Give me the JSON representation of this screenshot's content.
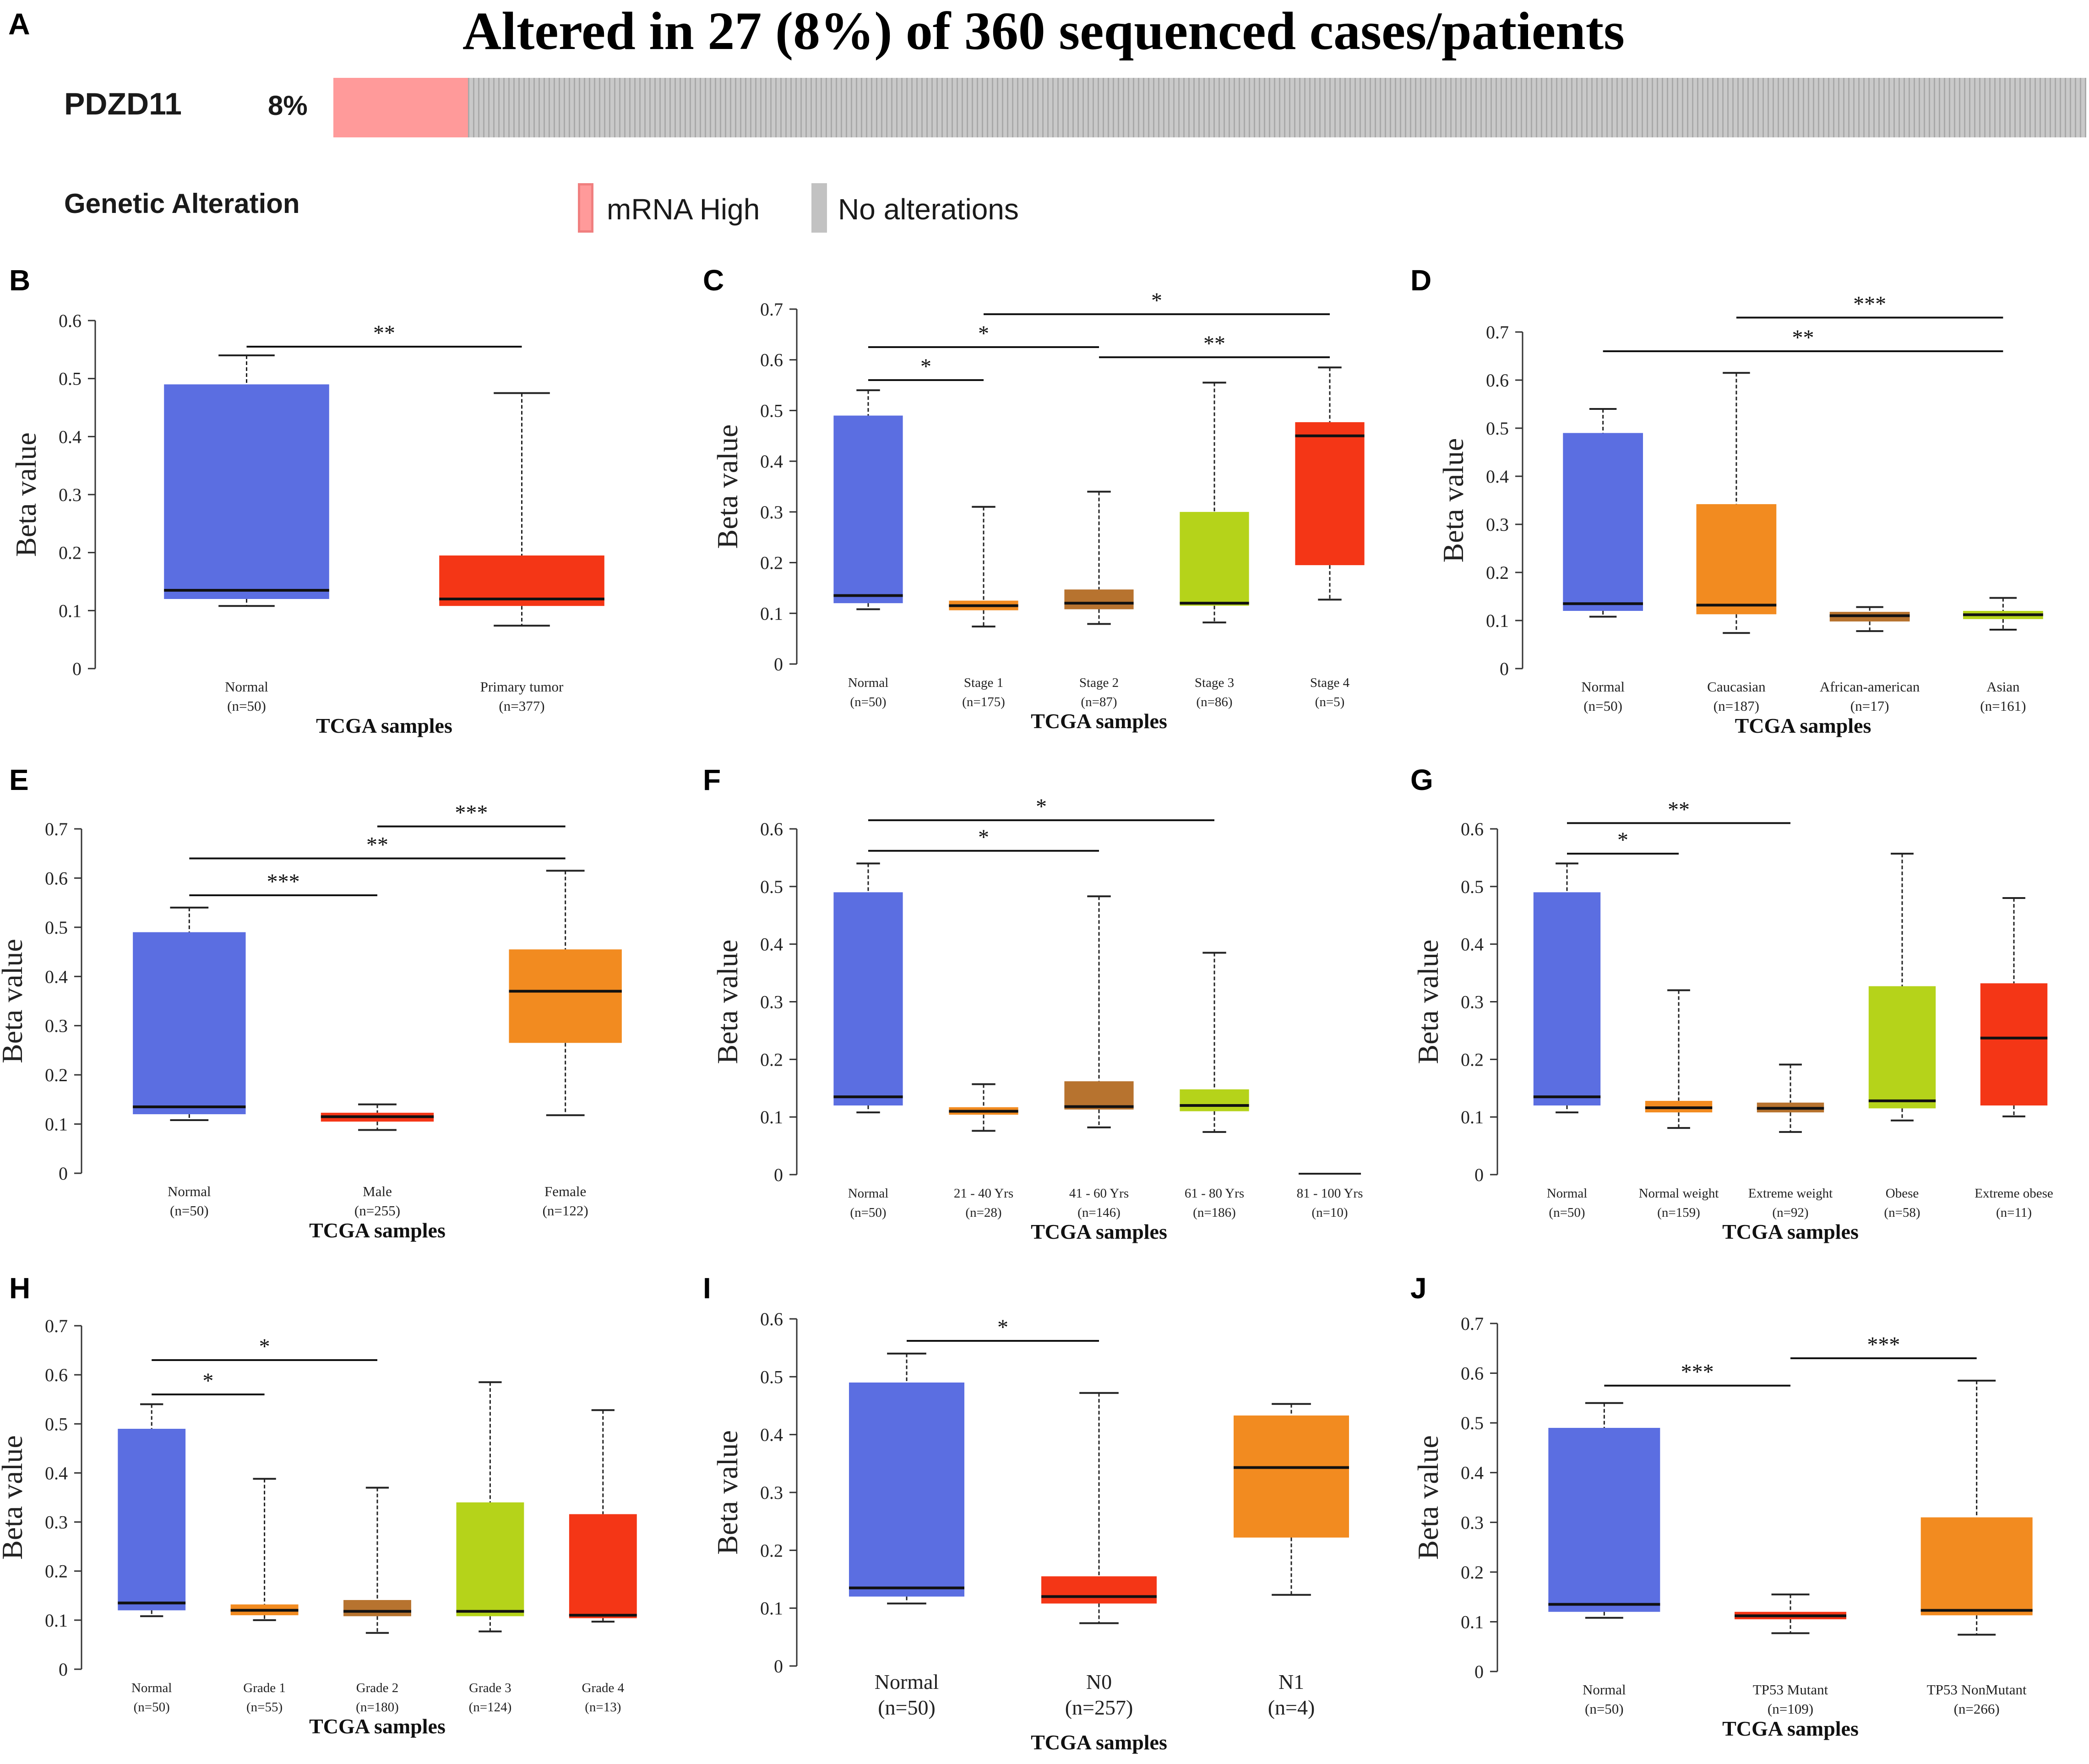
{
  "panel_a": {
    "letter": "A",
    "title": "Altered in 27 (8%) of 360 sequenced cases/patients",
    "gene": "PDZD11",
    "percent_label": "8%",
    "altered_fraction": 0.08,
    "genetic_alteration_label": "Genetic Alteration",
    "legend": [
      {
        "label": "mRNA High",
        "color": "#ff9a9a"
      },
      {
        "label": "No alterations",
        "color": "#c2c2c2"
      }
    ]
  },
  "colors": {
    "normal": "#5b6ee1",
    "red": "#f43616",
    "orange": "#f28b20",
    "brown": "#b7732f",
    "green": "#b5d31a"
  },
  "chart_data": [
    {
      "panel": "B",
      "type": "boxplot",
      "ylabel": "Beta value",
      "xlabel": "TCGA samples",
      "ylim": [
        0,
        0.6
      ],
      "yticks": [
        "0",
        "0.1",
        "0.2",
        "0.3",
        "0.4",
        "0.5",
        "0.6"
      ],
      "categories": [
        {
          "name": "Normal",
          "n": "(n=50)",
          "color": "normal",
          "min": 0.108,
          "q1": 0.12,
          "median": 0.135,
          "q3": 0.49,
          "max": 0.54
        },
        {
          "name": "Primary tumor",
          "n": "(n=377)",
          "color": "red",
          "min": 0.074,
          "q1": 0.108,
          "median": 0.12,
          "q3": 0.195,
          "max": 0.475
        }
      ],
      "sig": [
        {
          "from": 0,
          "to": 1,
          "y": 0.555,
          "label": "**"
        }
      ]
    },
    {
      "panel": "C",
      "type": "boxplot",
      "ylabel": "Beta value",
      "xlabel": "TCGA samples",
      "ylim": [
        0,
        0.7
      ],
      "yticks": [
        "0",
        "0.1",
        "0.2",
        "0.3",
        "0.4",
        "0.5",
        "0.6",
        "0.7"
      ],
      "categories": [
        {
          "name": "Normal",
          "n": "(n=50)",
          "color": "normal",
          "min": 0.108,
          "q1": 0.12,
          "median": 0.135,
          "q3": 0.49,
          "max": 0.54
        },
        {
          "name": "Stage 1",
          "n": "(n=175)",
          "color": "orange",
          "min": 0.074,
          "q1": 0.106,
          "median": 0.115,
          "q3": 0.125,
          "max": 0.31
        },
        {
          "name": "Stage 2",
          "n": "(n=87)",
          "color": "brown",
          "min": 0.079,
          "q1": 0.108,
          "median": 0.12,
          "q3": 0.147,
          "max": 0.34
        },
        {
          "name": "Stage 3",
          "n": "(n=86)",
          "color": "green",
          "min": 0.082,
          "q1": 0.115,
          "median": 0.12,
          "q3": 0.3,
          "max": 0.555
        },
        {
          "name": "Stage 4",
          "n": "(n=5)",
          "color": "red",
          "min": 0.127,
          "q1": 0.195,
          "median": 0.45,
          "q3": 0.477,
          "max": 0.585
        }
      ],
      "sig": [
        {
          "from": 0,
          "to": 1,
          "y": 0.56,
          "label": "*"
        },
        {
          "from": 0,
          "to": 2,
          "y": 0.625,
          "label": "*"
        },
        {
          "from": 2,
          "to": 4,
          "y": 0.605,
          "label": "**"
        },
        {
          "from": 1,
          "to": 4,
          "y": 0.69,
          "label": "*"
        }
      ]
    },
    {
      "panel": "D",
      "type": "boxplot",
      "ylabel": "Beta value",
      "xlabel": "TCGA samples",
      "ylim": [
        0,
        0.7
      ],
      "yticks": [
        "0",
        "0.1",
        "0.2",
        "0.3",
        "0.4",
        "0.5",
        "0.6",
        "0.7"
      ],
      "categories": [
        {
          "name": "Normal",
          "n": "(n=50)",
          "color": "normal",
          "min": 0.108,
          "q1": 0.12,
          "median": 0.135,
          "q3": 0.49,
          "max": 0.54
        },
        {
          "name": "Caucasian",
          "n": "(n=187)",
          "color": "orange",
          "min": 0.074,
          "q1": 0.113,
          "median": 0.132,
          "q3": 0.342,
          "max": 0.615
        },
        {
          "name": "African-american",
          "n": "(n=17)",
          "color": "brown",
          "min": 0.078,
          "q1": 0.098,
          "median": 0.11,
          "q3": 0.118,
          "max": 0.128
        },
        {
          "name": "Asian",
          "n": "(n=161)",
          "color": "green",
          "min": 0.081,
          "q1": 0.103,
          "median": 0.112,
          "q3": 0.12,
          "max": 0.147
        }
      ],
      "sig": [
        {
          "from": 0,
          "to": 3,
          "y": 0.66,
          "label": "**"
        },
        {
          "from": 1,
          "to": 3,
          "y": 0.73,
          "label": "***"
        }
      ]
    },
    {
      "panel": "E",
      "type": "boxplot",
      "ylabel": "Beta value",
      "xlabel": "TCGA samples",
      "ylim": [
        0,
        0.7
      ],
      "yticks": [
        "0",
        "0.1",
        "0.2",
        "0.3",
        "0.4",
        "0.5",
        "0.6",
        "0.7"
      ],
      "categories": [
        {
          "name": "Normal",
          "n": "(n=50)",
          "color": "normal",
          "min": 0.108,
          "q1": 0.12,
          "median": 0.135,
          "q3": 0.49,
          "max": 0.54
        },
        {
          "name": "Male",
          "n": "(n=255)",
          "color": "red",
          "min": 0.088,
          "q1": 0.105,
          "median": 0.115,
          "q3": 0.123,
          "max": 0.14
        },
        {
          "name": "Female",
          "n": "(n=122)",
          "color": "orange",
          "min": 0.118,
          "q1": 0.265,
          "median": 0.37,
          "q3": 0.455,
          "max": 0.615
        }
      ],
      "sig": [
        {
          "from": 0,
          "to": 1,
          "y": 0.565,
          "label": "***"
        },
        {
          "from": 0,
          "to": 2,
          "y": 0.64,
          "label": "**"
        },
        {
          "from": 1,
          "to": 2,
          "y": 0.705,
          "label": "***"
        }
      ]
    },
    {
      "panel": "F",
      "type": "boxplot",
      "ylabel": "Beta value",
      "xlabel": "TCGA samples",
      "ylim": [
        0,
        0.6
      ],
      "yticks": [
        "0",
        "0.1",
        "0.2",
        "0.3",
        "0.4",
        "0.5",
        "0.6"
      ],
      "categories": [
        {
          "name": "Normal",
          "n": "(n=50)",
          "color": "normal",
          "min": 0.108,
          "q1": 0.12,
          "median": 0.135,
          "q3": 0.49,
          "max": 0.54
        },
        {
          "name": "21 - 40 Yrs",
          "n": "(n=28)",
          "color": "orange",
          "min": 0.076,
          "q1": 0.104,
          "median": 0.11,
          "q3": 0.117,
          "max": 0.157
        },
        {
          "name": "41 - 60 Yrs",
          "n": "(n=146)",
          "color": "brown",
          "min": 0.082,
          "q1": 0.113,
          "median": 0.118,
          "q3": 0.162,
          "max": 0.483
        },
        {
          "name": "61 - 80 Yrs",
          "n": "(n=186)",
          "color": "green",
          "min": 0.074,
          "q1": 0.11,
          "median": 0.12,
          "q3": 0.148,
          "max": 0.385
        },
        {
          "name": "81 - 100 Yrs",
          "n": "(n=10)",
          "color": "red",
          "min": 0.0,
          "q1": 0.0,
          "median": 0.0,
          "q3": 0.0,
          "max": 0.0
        }
      ],
      "sig": [
        {
          "from": 0,
          "to": 2,
          "y": 0.562,
          "label": "*"
        },
        {
          "from": 0,
          "to": 3,
          "y": 0.615,
          "label": "*"
        }
      ]
    },
    {
      "panel": "G",
      "type": "boxplot",
      "ylabel": "Beta value",
      "xlabel": "TCGA samples",
      "ylim": [
        0,
        0.6
      ],
      "yticks": [
        "0",
        "0.1",
        "0.2",
        "0.3",
        "0.4",
        "0.5",
        "0.6"
      ],
      "categories": [
        {
          "name": "Normal",
          "n": "(n=50)",
          "color": "normal",
          "min": 0.108,
          "q1": 0.12,
          "median": 0.135,
          "q3": 0.49,
          "max": 0.54
        },
        {
          "name": "Normal weight",
          "n": "(n=159)",
          "color": "orange",
          "min": 0.081,
          "q1": 0.108,
          "median": 0.116,
          "q3": 0.128,
          "max": 0.32
        },
        {
          "name": "Extreme weight",
          "n": "(n=92)",
          "color": "brown",
          "min": 0.074,
          "q1": 0.108,
          "median": 0.115,
          "q3": 0.125,
          "max": 0.191
        },
        {
          "name": "Obese",
          "n": "(n=58)",
          "color": "green",
          "min": 0.094,
          "q1": 0.115,
          "median": 0.128,
          "q3": 0.327,
          "max": 0.557
        },
        {
          "name": "Extreme obese",
          "n": "(n=11)",
          "color": "red",
          "min": 0.101,
          "q1": 0.12,
          "median": 0.237,
          "q3": 0.332,
          "max": 0.48
        }
      ],
      "sig": [
        {
          "from": 0,
          "to": 1,
          "y": 0.557,
          "label": "*"
        },
        {
          "from": 0,
          "to": 2,
          "y": 0.61,
          "label": "**"
        }
      ]
    },
    {
      "panel": "H",
      "type": "boxplot",
      "ylabel": "Beta value",
      "xlabel": "TCGA samples",
      "ylim": [
        0,
        0.7
      ],
      "yticks": [
        "0",
        "0.1",
        "0.2",
        "0.3",
        "0.4",
        "0.5",
        "0.6",
        "0.7"
      ],
      "categories": [
        {
          "name": "Normal",
          "n": "(n=50)",
          "color": "normal",
          "min": 0.108,
          "q1": 0.12,
          "median": 0.135,
          "q3": 0.49,
          "max": 0.54
        },
        {
          "name": "Grade 1",
          "n": "(n=55)",
          "color": "orange",
          "min": 0.1,
          "q1": 0.11,
          "median": 0.12,
          "q3": 0.132,
          "max": 0.388
        },
        {
          "name": "Grade 2",
          "n": "(n=180)",
          "color": "brown",
          "min": 0.074,
          "q1": 0.108,
          "median": 0.118,
          "q3": 0.141,
          "max": 0.37
        },
        {
          "name": "Grade 3",
          "n": "(n=124)",
          "color": "green",
          "min": 0.077,
          "q1": 0.108,
          "median": 0.118,
          "q3": 0.34,
          "max": 0.585
        },
        {
          "name": "Grade 4",
          "n": "(n=13)",
          "color": "red",
          "min": 0.097,
          "q1": 0.104,
          "median": 0.11,
          "q3": 0.316,
          "max": 0.528
        }
      ],
      "sig": [
        {
          "from": 0,
          "to": 1,
          "y": 0.56,
          "label": "*"
        },
        {
          "from": 0,
          "to": 2,
          "y": 0.63,
          "label": "*"
        }
      ]
    },
    {
      "panel": "I",
      "type": "boxplot",
      "ylabel": "Beta value",
      "xlabel": "TCGA samples",
      "ylim": [
        0,
        0.6
      ],
      "yticks": [
        "0",
        "0.1",
        "0.2",
        "0.3",
        "0.4",
        "0.5",
        "0.6"
      ],
      "categories": [
        {
          "name": "Normal",
          "n": "(n=50)",
          "color": "normal",
          "min": 0.108,
          "q1": 0.12,
          "median": 0.135,
          "q3": 0.49,
          "max": 0.54
        },
        {
          "name": "N0",
          "n": "(n=257)",
          "color": "red",
          "min": 0.074,
          "q1": 0.108,
          "median": 0.12,
          "q3": 0.155,
          "max": 0.472
        },
        {
          "name": "N1",
          "n": "(n=4)",
          "color": "orange",
          "min": 0.123,
          "q1": 0.222,
          "median": 0.343,
          "q3": 0.433,
          "max": 0.453
        }
      ],
      "sig": [
        {
          "from": 0,
          "to": 1,
          "y": 0.562,
          "label": "*"
        }
      ]
    },
    {
      "panel": "J",
      "type": "boxplot",
      "ylabel": "Beta value",
      "xlabel": "TCGA samples",
      "ylim": [
        0,
        0.7
      ],
      "yticks": [
        "0",
        "0.1",
        "0.2",
        "0.3",
        "0.4",
        "0.5",
        "0.6",
        "0.7"
      ],
      "categories": [
        {
          "name": "Normal",
          "n": "(n=50)",
          "color": "normal",
          "min": 0.108,
          "q1": 0.12,
          "median": 0.135,
          "q3": 0.49,
          "max": 0.54
        },
        {
          "name": "TP53 Mutant",
          "n": "(n=109)",
          "color": "red",
          "min": 0.077,
          "q1": 0.105,
          "median": 0.112,
          "q3": 0.12,
          "max": 0.155
        },
        {
          "name": "TP53 NonMutant",
          "n": "(n=266)",
          "color": "orange",
          "min": 0.074,
          "q1": 0.113,
          "median": 0.123,
          "q3": 0.31,
          "max": 0.585
        }
      ],
      "sig": [
        {
          "from": 0,
          "to": 1,
          "y": 0.575,
          "label": "***"
        },
        {
          "from": 1,
          "to": 2,
          "y": 0.63,
          "label": "***"
        }
      ]
    }
  ]
}
